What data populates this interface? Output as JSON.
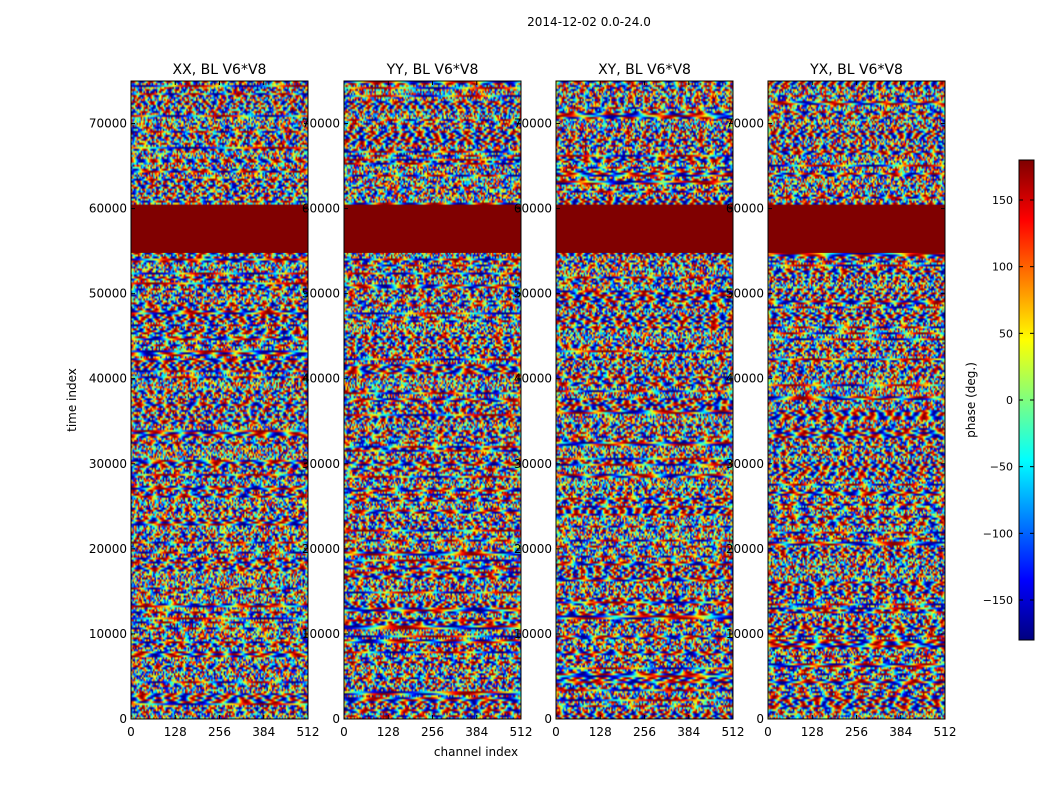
{
  "figure": {
    "suptitle": "2014-12-02 0.0-24.0"
  },
  "chart_data": {
    "type": "heatmap",
    "xlabel": "channel index",
    "ylabel": "time index",
    "xlim": [
      0,
      512
    ],
    "ylim": [
      0,
      75000
    ],
    "x_ticks": [
      0,
      128,
      256,
      384,
      512
    ],
    "y_ticks": [
      0,
      10000,
      20000,
      30000,
      40000,
      50000,
      60000,
      70000
    ],
    "panels": [
      {
        "title": "XX, BL V6*V8",
        "pol": "XX"
      },
      {
        "title": "YY, BL V6*V8",
        "pol": "YY"
      },
      {
        "title": "XY, BL V6*V8",
        "pol": "XY"
      },
      {
        "title": "YX, BL V6*V8",
        "pol": "YX"
      }
    ],
    "flagged_time_range": [
      54800,
      60400
    ],
    "flagged_value": 180,
    "colorbar": {
      "label": "phase (deg.)",
      "range": [
        -180,
        180
      ],
      "ticks": [
        -150,
        -100,
        -50,
        0,
        50,
        100,
        150
      ],
      "colormap": "jet"
    }
  }
}
